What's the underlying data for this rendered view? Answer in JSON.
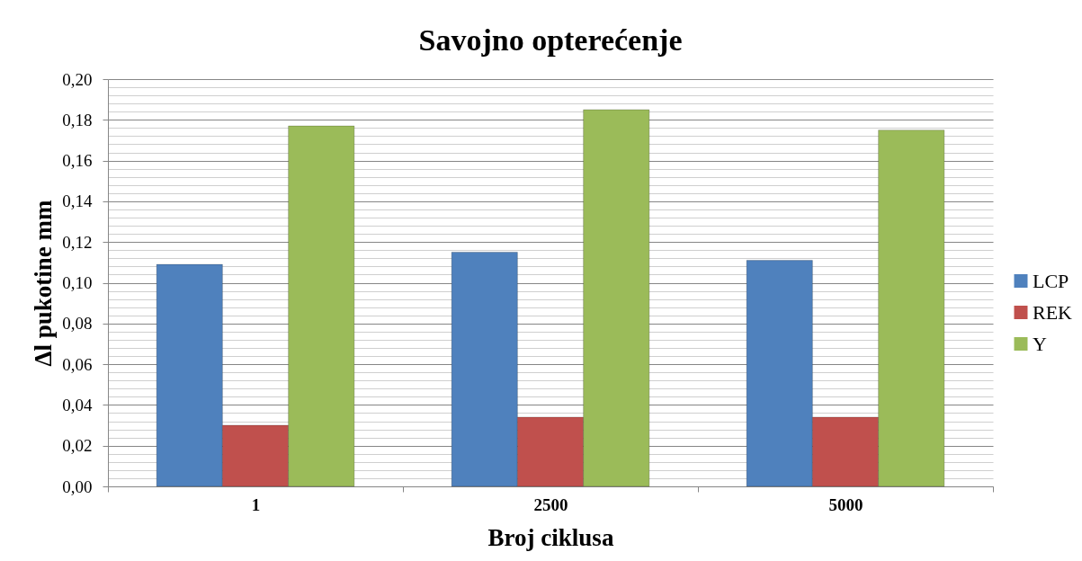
{
  "chart_data": {
    "type": "bar",
    "title": "Savojno opterećenje",
    "xlabel": "Broj ciklusa",
    "ylabel": "Δl pukotine   mm",
    "categories": [
      "1",
      "2500",
      "5000"
    ],
    "series": [
      {
        "name": "LCP",
        "color": "#4f81bd",
        "values": [
          0.109,
          0.115,
          0.111
        ]
      },
      {
        "name": "REK",
        "color": "#c0504d",
        "values": [
          0.03,
          0.034,
          0.034
        ]
      },
      {
        "name": "Y",
        "color": "#9bbb59",
        "values": [
          0.177,
          0.185,
          0.175
        ]
      }
    ],
    "ylim": [
      0,
      0.2
    ],
    "yticks": [
      {
        "value": 0,
        "label": "0,00"
      },
      {
        "value": 0.004,
        "label": null
      },
      {
        "value": 0.008,
        "label": null
      },
      {
        "value": 0.012,
        "label": null
      },
      {
        "value": 0.016,
        "label": null
      },
      {
        "value": 0.02,
        "label": "0,02"
      },
      {
        "value": 0.024,
        "label": null
      },
      {
        "value": 0.028,
        "label": null
      },
      {
        "value": 0.032,
        "label": null
      },
      {
        "value": 0.036,
        "label": null
      },
      {
        "value": 0.04,
        "label": "0,04"
      },
      {
        "value": 0.044,
        "label": null
      },
      {
        "value": 0.048,
        "label": null
      },
      {
        "value": 0.052,
        "label": null
      },
      {
        "value": 0.056,
        "label": null
      },
      {
        "value": 0.06,
        "label": "0,06"
      },
      {
        "value": 0.064,
        "label": null
      },
      {
        "value": 0.068,
        "label": null
      },
      {
        "value": 0.072,
        "label": null
      },
      {
        "value": 0.076,
        "label": null
      },
      {
        "value": 0.08,
        "label": "0,08"
      },
      {
        "value": 0.084,
        "label": null
      },
      {
        "value": 0.088,
        "label": null
      },
      {
        "value": 0.092,
        "label": null
      },
      {
        "value": 0.096,
        "label": null
      },
      {
        "value": 0.1,
        "label": "0,10"
      },
      {
        "value": 0.104,
        "label": null
      },
      {
        "value": 0.108,
        "label": null
      },
      {
        "value": 0.112,
        "label": null
      },
      {
        "value": 0.116,
        "label": null
      },
      {
        "value": 0.12,
        "label": "0,12"
      },
      {
        "value": 0.124,
        "label": null
      },
      {
        "value": 0.128,
        "label": null
      },
      {
        "value": 0.132,
        "label": null
      },
      {
        "value": 0.136,
        "label": null
      },
      {
        "value": 0.14,
        "label": "0,14"
      },
      {
        "value": 0.144,
        "label": null
      },
      {
        "value": 0.148,
        "label": null
      },
      {
        "value": 0.152,
        "label": null
      },
      {
        "value": 0.156,
        "label": null
      },
      {
        "value": 0.16,
        "label": "0,16"
      },
      {
        "value": 0.164,
        "label": null
      },
      {
        "value": 0.168,
        "label": null
      },
      {
        "value": 0.172,
        "label": null
      },
      {
        "value": 0.176,
        "label": null
      },
      {
        "value": 0.18,
        "label": "0,18"
      },
      {
        "value": 0.184,
        "label": null
      },
      {
        "value": 0.188,
        "label": null
      },
      {
        "value": 0.192,
        "label": null
      },
      {
        "value": 0.196,
        "label": null
      },
      {
        "value": 0.2,
        "label": "0,20"
      }
    ],
    "grid": "y",
    "legend": "right"
  }
}
